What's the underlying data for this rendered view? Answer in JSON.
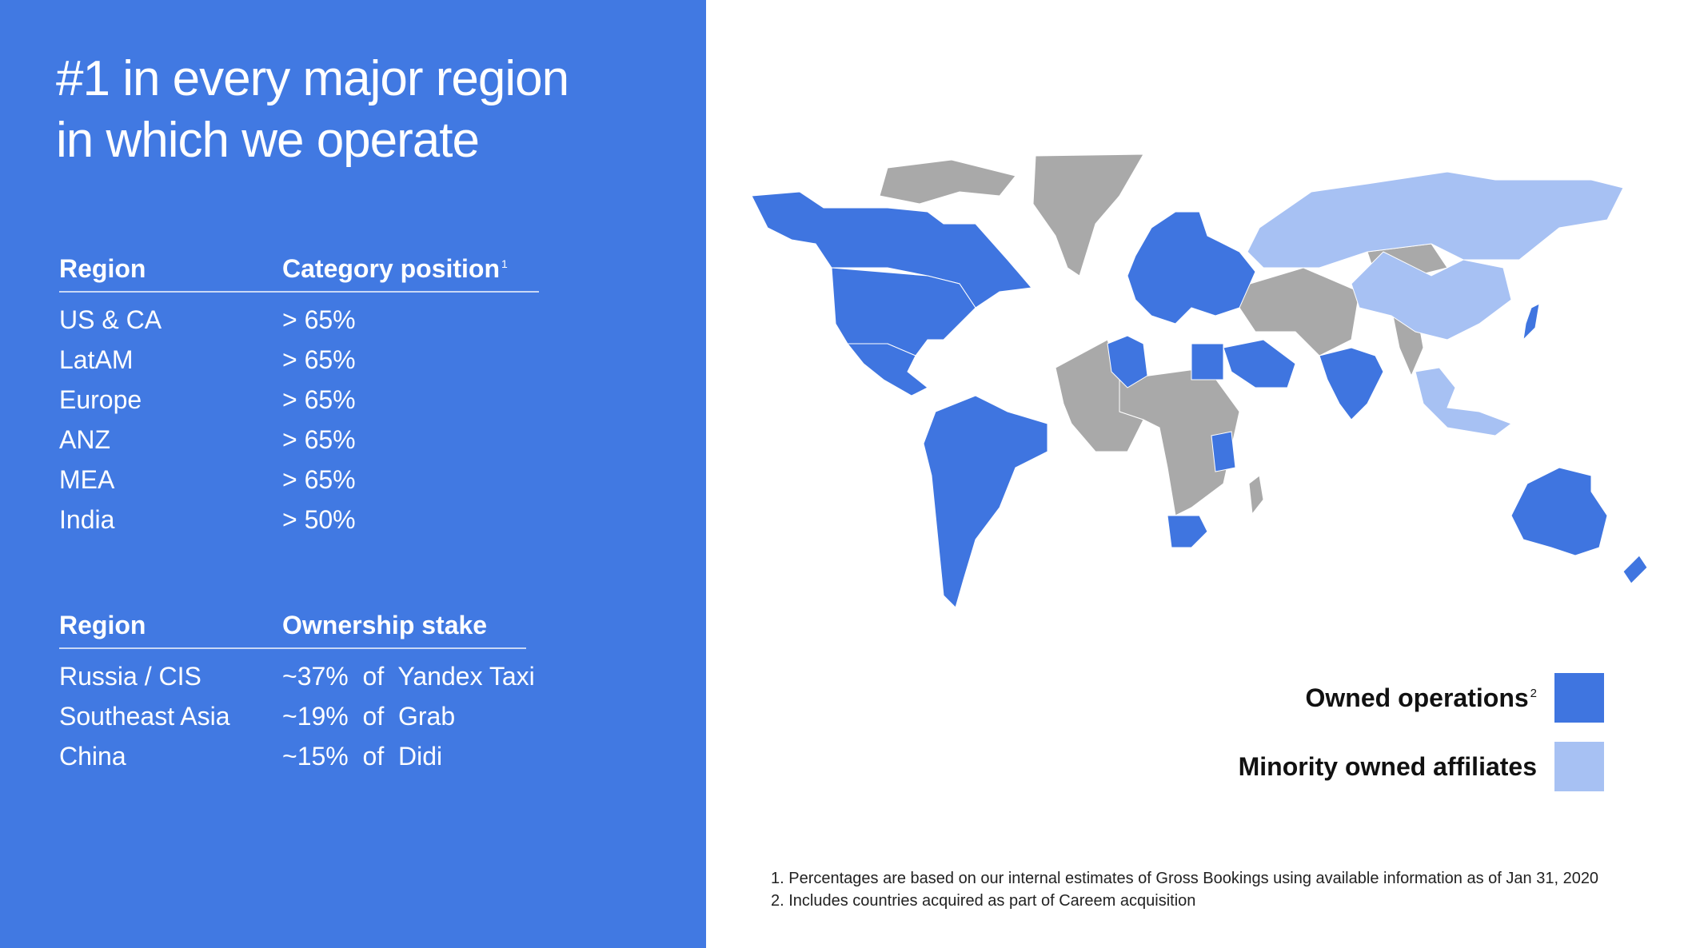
{
  "title": {
    "line1": "#1 in every major region",
    "line2": "in which we operate"
  },
  "category_table": {
    "header_region": "Region",
    "header_position": "Category position",
    "header_position_sup": "1",
    "rows": [
      {
        "region": "US & CA",
        "value": "> 65%"
      },
      {
        "region": "LatAM",
        "value": "> 65%"
      },
      {
        "region": "Europe",
        "value": "> 65%"
      },
      {
        "region": "ANZ",
        "value": "> 65%"
      },
      {
        "region": "MEA",
        "value": "> 65%"
      },
      {
        "region": "India",
        "value": "> 50%"
      }
    ]
  },
  "ownership_table": {
    "header_region": "Region",
    "header_stake": "Ownership stake",
    "rows": [
      {
        "region": "Russia / CIS",
        "value": "~37%  of  Yandex Taxi"
      },
      {
        "region": "Southeast Asia",
        "value": "~19%  of  Grab"
      },
      {
        "region": "China",
        "value": "~15%  of  Didi"
      }
    ]
  },
  "legend": {
    "owned_label": "Owned operations",
    "owned_sup": "2",
    "minority_label": "Minority owned affiliates"
  },
  "colors": {
    "panel": "#4179e2",
    "owned": "#3f75e0",
    "minority": "#a7c1f3",
    "other": "#a9a9a9"
  },
  "footnotes": {
    "note1": "1. Percentages are based on our internal estimates of Gross Bookings using available information as of Jan 31, 2020",
    "note2": "2. Includes countries acquired as part of Careem acquisition"
  }
}
